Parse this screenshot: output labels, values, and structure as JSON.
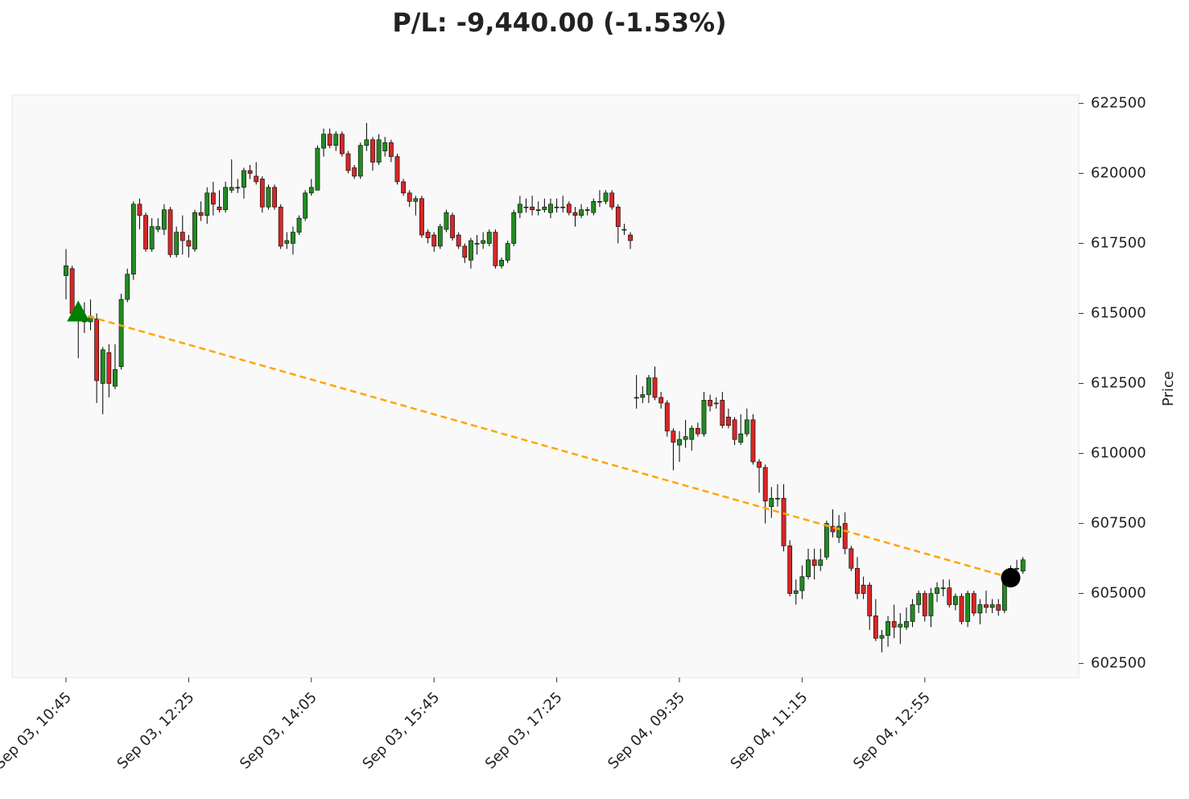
{
  "chart_data": {
    "type": "candlestick",
    "title": "P/L: -9,440.00 (-1.53%)",
    "y_label": "Price",
    "categories": [
      "Sep 03, 10:45",
      null,
      null,
      null,
      null,
      null,
      null,
      null,
      null,
      null,
      null,
      null,
      null,
      null,
      null,
      null,
      null,
      null,
      null,
      null,
      "Sep 03, 12:25",
      null,
      null,
      null,
      null,
      null,
      null,
      null,
      null,
      null,
      null,
      null,
      null,
      null,
      null,
      null,
      null,
      null,
      null,
      null,
      "Sep 03, 14:05",
      null,
      null,
      null,
      null,
      null,
      null,
      null,
      null,
      null,
      null,
      null,
      null,
      null,
      null,
      null,
      null,
      null,
      null,
      null,
      "Sep 03, 15:45",
      null,
      null,
      null,
      null,
      null,
      null,
      null,
      null,
      null,
      null,
      null,
      null,
      null,
      null,
      null,
      null,
      null,
      null,
      null,
      "Sep 03, 17:25",
      null,
      null,
      null,
      null,
      null,
      null,
      null,
      null,
      null,
      null,
      null,
      null,
      null,
      null,
      null,
      null,
      null,
      null,
      null,
      "Sep 04, 09:35",
      null,
      null,
      null,
      null,
      null,
      null,
      null,
      null,
      null,
      null,
      null,
      null,
      null,
      null,
      null,
      null,
      null,
      null,
      null,
      "Sep 04, 11:15",
      null,
      null,
      null,
      null,
      null,
      null,
      null,
      null,
      null,
      null,
      null,
      null,
      null,
      null,
      null,
      null,
      null,
      null,
      null,
      "Sep 04, 12:55",
      null,
      null,
      null,
      null,
      null,
      null,
      null,
      null,
      null,
      null,
      null,
      null,
      null,
      null,
      null,
      null
    ],
    "open": [
      616350,
      616600,
      615000,
      614700,
      614700,
      614800,
      612500,
      613600,
      612400,
      613100,
      615500,
      616400,
      618900,
      618500,
      617300,
      618000,
      618000,
      618700,
      617100,
      617900,
      617600,
      617300,
      618600,
      618500,
      619300,
      618800,
      618700,
      619400,
      619500,
      619500,
      620100,
      619900,
      619800,
      618800,
      619500,
      618800,
      617500,
      617500,
      617900,
      618400,
      619300,
      619400,
      620900,
      621400,
      621000,
      621400,
      620700,
      620200,
      619900,
      621000,
      621200,
      620400,
      620800,
      621100,
      620600,
      619700,
      619300,
      619000,
      619100,
      617900,
      617800,
      617400,
      618000,
      618500,
      617800,
      617400,
      616900,
      617500,
      617500,
      617500,
      617900,
      616700,
      616900,
      617500,
      618600,
      618800,
      618800,
      618700,
      618700,
      618600,
      618800,
      618800,
      618900,
      618600,
      618500,
      618700,
      618600,
      619000,
      619000,
      619300,
      618800,
      618000,
      617800,
      612000,
      612000,
      612100,
      612700,
      612000,
      611800,
      610800,
      610300,
      610500,
      610500,
      610900,
      610700,
      611900,
      611800,
      611900,
      611300,
      611200,
      610400,
      610700,
      611200,
      609700,
      609500,
      608100,
      608400,
      608400,
      606700,
      605000,
      605100,
      605600,
      606200,
      606000,
      606300,
      607400,
      607000,
      607500,
      606600,
      605900,
      605300,
      605300,
      604200,
      603400,
      603500,
      604000,
      603800,
      603800,
      604000,
      604600,
      605000,
      604200,
      605000,
      605200,
      605200,
      604600,
      604900,
      604000,
      605000,
      604300,
      604600,
      604500,
      604600,
      604400,
      605500,
      605900,
      605800
    ],
    "high": [
      617300,
      616700,
      615300,
      615400,
      615500,
      615000,
      613800,
      613900,
      613900,
      615700,
      616600,
      619000,
      619100,
      618600,
      618400,
      618400,
      618900,
      618800,
      618100,
      618500,
      617800,
      618700,
      619000,
      619500,
      619700,
      619400,
      619700,
      620500,
      619800,
      620200,
      620300,
      620400,
      619900,
      619600,
      619600,
      618900,
      617900,
      618100,
      618500,
      619400,
      619800,
      621000,
      621600,
      621600,
      621500,
      621500,
      620800,
      620300,
      621100,
      621800,
      621300,
      621400,
      621300,
      621200,
      620700,
      619800,
      619400,
      619200,
      619200,
      618000,
      617900,
      618200,
      618700,
      618600,
      617900,
      617500,
      617700,
      617800,
      617900,
      618000,
      618000,
      617000,
      617600,
      618700,
      619200,
      619100,
      619200,
      619000,
      619100,
      619100,
      619100,
      619200,
      619000,
      618800,
      618900,
      618800,
      619100,
      619400,
      619400,
      619400,
      618900,
      618200,
      617900,
      612800,
      612400,
      612800,
      613100,
      612200,
      611900,
      610900,
      610800,
      611200,
      611000,
      611100,
      612200,
      612100,
      612000,
      612200,
      611600,
      611300,
      611400,
      611600,
      611400,
      609800,
      609600,
      608800,
      608900,
      608900,
      606900,
      605500,
      606000,
      606600,
      606600,
      606600,
      607600,
      608000,
      607800,
      607900,
      606700,
      606300,
      605600,
      605400,
      604800,
      603700,
      604200,
      604600,
      604300,
      604500,
      604800,
      605100,
      605100,
      605200,
      605400,
      605500,
      605500,
      605000,
      605000,
      605100,
      605100,
      604800,
      605100,
      604800,
      604800,
      605600,
      606000,
      606200,
      606300
    ],
    "low": [
      615500,
      614900,
      613400,
      614300,
      614400,
      611800,
      611400,
      612000,
      612300,
      613000,
      615400,
      616200,
      618000,
      617200,
      617200,
      617900,
      617800,
      617000,
      617000,
      617100,
      617000,
      617200,
      618300,
      618200,
      618500,
      618600,
      618600,
      619300,
      619300,
      619100,
      619800,
      619600,
      618600,
      618700,
      618700,
      617300,
      617300,
      617100,
      617800,
      618300,
      619200,
      619400,
      620600,
      620900,
      620800,
      620600,
      620000,
      619800,
      619800,
      620800,
      620100,
      620300,
      620600,
      620400,
      619600,
      619200,
      618800,
      618500,
      617700,
      617500,
      617200,
      617300,
      617900,
      617600,
      617300,
      616800,
      616600,
      617100,
      617300,
      617400,
      616600,
      616600,
      616800,
      617400,
      618400,
      618600,
      618500,
      618500,
      618600,
      618400,
      618600,
      618600,
      618500,
      618100,
      618400,
      618500,
      618500,
      618800,
      618900,
      618700,
      617500,
      617800,
      617300,
      611600,
      611800,
      611800,
      611900,
      611600,
      610600,
      609400,
      609700,
      610200,
      610100,
      610600,
      610600,
      611500,
      611600,
      610900,
      610900,
      610300,
      610300,
      610600,
      609600,
      608600,
      607500,
      607700,
      608100,
      606500,
      604900,
      604600,
      604800,
      605500,
      605500,
      605800,
      606200,
      607000,
      606800,
      606400,
      605800,
      604800,
      604800,
      603700,
      603300,
      602900,
      603100,
      603400,
      603200,
      603700,
      603800,
      604300,
      604000,
      603800,
      604700,
      604900,
      604500,
      604400,
      603900,
      603800,
      604200,
      603900,
      604300,
      604300,
      604200,
      604300,
      605400,
      605700,
      605700
    ],
    "close": [
      616700,
      615000,
      614800,
      614900,
      614900,
      612600,
      613700,
      612500,
      613000,
      615500,
      616400,
      618900,
      618500,
      617300,
      618100,
      618100,
      618700,
      617100,
      617900,
      617600,
      617400,
      618600,
      618500,
      619300,
      618900,
      618700,
      619500,
      619500,
      619500,
      620100,
      620000,
      619700,
      618800,
      619500,
      618800,
      617400,
      617600,
      617900,
      618400,
      619300,
      619500,
      620900,
      621400,
      621000,
      621400,
      620700,
      620100,
      619900,
      621000,
      621200,
      620400,
      621200,
      621100,
      620600,
      619700,
      619300,
      619000,
      619100,
      617800,
      617700,
      617400,
      618100,
      618600,
      617700,
      617400,
      617000,
      617600,
      617500,
      617600,
      617900,
      616700,
      616900,
      617500,
      618600,
      618900,
      618800,
      618700,
      618700,
      618800,
      618900,
      618800,
      618800,
      618600,
      618500,
      618700,
      618700,
      619000,
      619000,
      619300,
      618800,
      618100,
      618000,
      617600,
      612000,
      612100,
      612700,
      612000,
      611800,
      610800,
      610400,
      610500,
      610600,
      610900,
      610700,
      611900,
      611700,
      611800,
      611000,
      611000,
      610500,
      610700,
      611200,
      609700,
      609500,
      608300,
      608400,
      608400,
      606700,
      605000,
      605100,
      605600,
      606200,
      606000,
      606200,
      607500,
      607200,
      607400,
      606600,
      605900,
      605000,
      605000,
      604200,
      603400,
      603500,
      604000,
      603800,
      603900,
      604000,
      604600,
      605000,
      604200,
      605000,
      605200,
      605200,
      604600,
      604900,
      604000,
      605000,
      604300,
      604600,
      604500,
      604600,
      604400,
      605500,
      605900,
      605900,
      606200
    ],
    "up_color": "#228b22",
    "down_color": "#d62728",
    "ylim": [
      602000,
      622800
    ],
    "yticks": [
      602500,
      605000,
      607500,
      610000,
      612500,
      615000,
      617500,
      620000,
      622500
    ],
    "trades": [
      {
        "x": 2,
        "y": 615000,
        "marker": "triangle",
        "color": "#008000"
      },
      {
        "x": 154,
        "y": 605560,
        "marker": "circle",
        "color": "#000000"
      }
    ],
    "trade_line_color": "#ffa500"
  }
}
